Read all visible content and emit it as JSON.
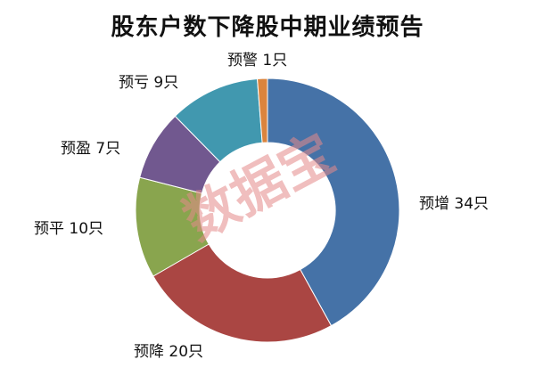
{
  "chart_data": {
    "type": "pie",
    "title": "股东户数下降股中期业绩预告",
    "donut": true,
    "slices": [
      {
        "label": "预增",
        "value": 34,
        "unit": "只",
        "color": "#4572a7"
      },
      {
        "label": "预降",
        "value": 20,
        "unit": "只",
        "color": "#aa4643"
      },
      {
        "label": "预平",
        "value": 10,
        "unit": "只",
        "color": "#89a54e"
      },
      {
        "label": "预盈",
        "value": 7,
        "unit": "只",
        "color": "#71588f"
      },
      {
        "label": "预亏",
        "value": 9,
        "unit": "只",
        "color": "#4198af"
      },
      {
        "label": "预警",
        "value": 1,
        "unit": "只",
        "color": "#db843d"
      }
    ],
    "watermark": "数据宝"
  }
}
